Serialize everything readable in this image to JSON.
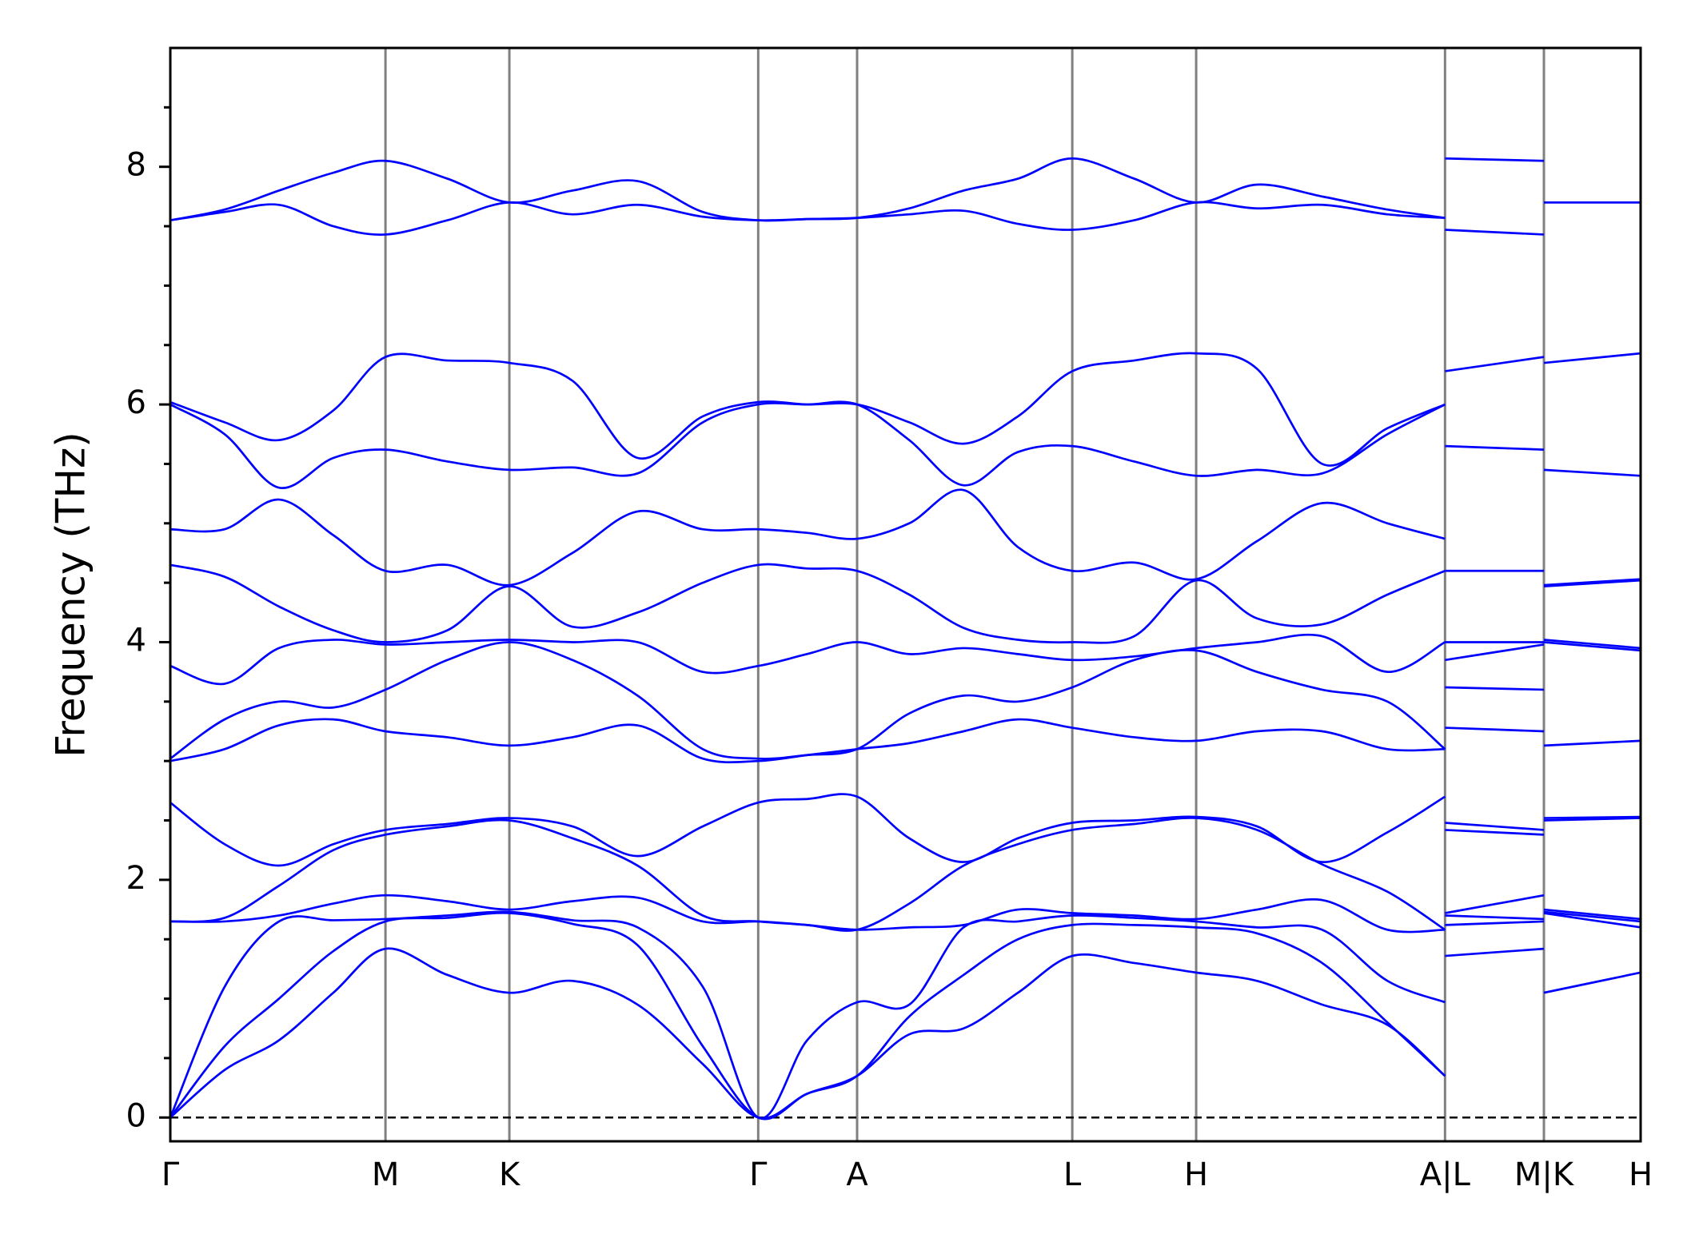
{
  "chart_data": {
    "type": "line",
    "ylabel": "Frequency (THz)",
    "color": "#0000ff",
    "xlim": [
      0,
      1353
    ],
    "ylim": [
      -0.2,
      9.0
    ],
    "xticks": [
      {
        "value": 0,
        "label": "Γ"
      },
      {
        "value": 198,
        "label": "M"
      },
      {
        "value": 312,
        "label": "K"
      },
      {
        "value": 541,
        "label": "Γ"
      },
      {
        "value": 632,
        "label": "A"
      },
      {
        "value": 830,
        "label": "L"
      },
      {
        "value": 944,
        "label": "H"
      },
      {
        "value": 1173,
        "label": "A|L"
      },
      {
        "value": 1264,
        "label": "M|K"
      },
      {
        "value": 1353,
        "label": "H"
      }
    ],
    "yticks": [
      0,
      2,
      4,
      6,
      8
    ],
    "yminorticks": [
      0.5,
      1,
      1.5,
      2.5,
      3,
      3.5,
      4.5,
      5,
      5.5,
      6.5,
      7,
      7.5,
      8.5
    ],
    "grid": "x",
    "hline": 0,
    "x": [
      0,
      50,
      100,
      150,
      198,
      255,
      312,
      370,
      430,
      490,
      541,
      586,
      632,
      680,
      730,
      780,
      830,
      887,
      944,
      1000,
      1060,
      1120,
      1173,
      1173,
      1173,
      1264,
      1264,
      1264,
      1353
    ],
    "series": [
      {
        "values": [
          0,
          0.4,
          0.65,
          1.05,
          1.42,
          1.2,
          1.05,
          1.15,
          0.95,
          0.45,
          0,
          0.2,
          0.35,
          0.7,
          0.75,
          1.05,
          1.36,
          1.3,
          1.22,
          1.15,
          0.95,
          0.78,
          0.35,
          null,
          1.36,
          1.42,
          null,
          1.05,
          1.22
        ]
      },
      {
        "values": [
          0,
          0.6,
          1.0,
          1.4,
          1.65,
          1.68,
          1.72,
          1.63,
          1.45,
          0.6,
          0,
          0.2,
          0.35,
          0.85,
          1.2,
          1.5,
          1.62,
          1.62,
          1.6,
          1.55,
          1.3,
          0.8,
          0.35,
          null,
          1.62,
          1.65,
          null,
          1.72,
          1.6
        ]
      },
      {
        "values": [
          0,
          1.1,
          1.65,
          1.66,
          1.67,
          1.7,
          1.73,
          1.66,
          1.6,
          1.1,
          0,
          0.65,
          0.97,
          0.95,
          1.6,
          1.65,
          1.7,
          1.68,
          1.65,
          1.6,
          1.58,
          1.15,
          0.97,
          null,
          1.7,
          1.67,
          null,
          1.73,
          1.65
        ]
      },
      {
        "values": [
          1.65,
          1.65,
          1.7,
          1.8,
          1.87,
          1.82,
          1.75,
          1.82,
          1.85,
          1.65,
          1.65,
          1.62,
          1.58,
          1.6,
          1.62,
          1.75,
          1.72,
          1.7,
          1.67,
          1.75,
          1.83,
          1.58,
          1.58,
          null,
          1.72,
          1.87,
          null,
          1.75,
          1.67
        ]
      },
      {
        "values": [
          1.65,
          1.68,
          1.95,
          2.25,
          2.38,
          2.45,
          2.5,
          2.35,
          2.12,
          1.7,
          1.65,
          1.62,
          1.58,
          1.8,
          2.12,
          2.3,
          2.42,
          2.47,
          2.52,
          2.42,
          2.13,
          1.9,
          1.58,
          null,
          2.42,
          2.38,
          null,
          2.5,
          2.52
        ]
      },
      {
        "values": [
          2.65,
          2.3,
          2.12,
          2.3,
          2.42,
          2.47,
          2.52,
          2.45,
          2.2,
          2.45,
          2.65,
          2.68,
          2.7,
          2.35,
          2.15,
          2.35,
          2.48,
          2.5,
          2.53,
          2.45,
          2.15,
          2.4,
          2.7,
          null,
          2.48,
          2.42,
          null,
          2.52,
          2.53
        ]
      },
      {
        "values": [
          3.0,
          3.1,
          3.3,
          3.35,
          3.25,
          3.2,
          3.13,
          3.2,
          3.3,
          3.02,
          3.0,
          3.05,
          3.1,
          3.15,
          3.25,
          3.35,
          3.28,
          3.2,
          3.17,
          3.25,
          3.25,
          3.1,
          3.1,
          null,
          3.28,
          3.25,
          null,
          3.13,
          3.17
        ]
      },
      {
        "values": [
          3.02,
          3.35,
          3.5,
          3.45,
          3.6,
          3.85,
          4.0,
          3.85,
          3.55,
          3.1,
          3.02,
          3.05,
          3.1,
          3.4,
          3.55,
          3.5,
          3.62,
          3.85,
          3.93,
          3.75,
          3.6,
          3.5,
          3.1,
          null,
          3.62,
          3.6,
          null,
          4.0,
          3.93
        ]
      },
      {
        "values": [
          3.8,
          3.65,
          3.95,
          4.02,
          3.98,
          4.0,
          4.02,
          4.0,
          4.0,
          3.75,
          3.8,
          3.9,
          4.0,
          3.9,
          3.95,
          3.9,
          3.85,
          3.88,
          3.95,
          4.0,
          4.05,
          3.75,
          4.0,
          null,
          3.85,
          3.98,
          null,
          4.02,
          3.95
        ]
      },
      {
        "values": [
          4.65,
          4.55,
          4.3,
          4.1,
          4.0,
          4.1,
          4.47,
          4.13,
          4.25,
          4.5,
          4.65,
          4.62,
          4.6,
          4.4,
          4.12,
          4.02,
          4.0,
          4.05,
          4.52,
          4.2,
          4.15,
          4.4,
          4.6,
          null,
          4.0,
          4.0,
          null,
          4.47,
          4.52
        ]
      },
      {
        "values": [
          4.95,
          4.95,
          5.2,
          4.9,
          4.6,
          4.65,
          4.48,
          4.75,
          5.1,
          4.95,
          4.95,
          4.92,
          4.87,
          5.0,
          5.28,
          4.8,
          4.6,
          4.67,
          4.53,
          4.85,
          5.17,
          5.0,
          4.87,
          null,
          4.6,
          4.6,
          null,
          4.48,
          4.53
        ]
      },
      {
        "values": [
          6.0,
          5.75,
          5.3,
          5.55,
          5.62,
          5.52,
          5.45,
          5.47,
          5.42,
          5.85,
          6.0,
          6.0,
          6.0,
          5.7,
          5.32,
          5.6,
          5.65,
          5.52,
          5.4,
          5.45,
          5.42,
          5.75,
          6.0,
          null,
          5.65,
          5.62,
          null,
          5.45,
          5.4
        ]
      },
      {
        "values": [
          6.02,
          5.85,
          5.7,
          5.95,
          6.4,
          6.37,
          6.35,
          6.2,
          5.55,
          5.9,
          6.02,
          6.0,
          6.0,
          5.85,
          5.67,
          5.9,
          6.28,
          6.37,
          6.43,
          6.3,
          5.5,
          5.8,
          6.0,
          null,
          6.28,
          6.4,
          null,
          6.35,
          6.43
        ]
      },
      {
        "values": [
          7.55,
          7.62,
          7.68,
          7.5,
          7.43,
          7.55,
          7.7,
          7.6,
          7.68,
          7.58,
          7.55,
          7.56,
          7.57,
          7.6,
          7.63,
          7.52,
          7.47,
          7.55,
          7.7,
          7.65,
          7.68,
          7.6,
          7.57,
          null,
          7.47,
          7.43,
          null,
          7.7,
          7.7
        ]
      },
      {
        "values": [
          7.55,
          7.64,
          7.8,
          7.95,
          8.05,
          7.9,
          7.7,
          7.8,
          7.88,
          7.62,
          7.55,
          7.56,
          7.57,
          7.65,
          7.8,
          7.9,
          8.07,
          7.9,
          7.7,
          7.85,
          7.75,
          7.64,
          7.57,
          null,
          8.07,
          8.05,
          null,
          7.7,
          7.7
        ]
      }
    ]
  }
}
